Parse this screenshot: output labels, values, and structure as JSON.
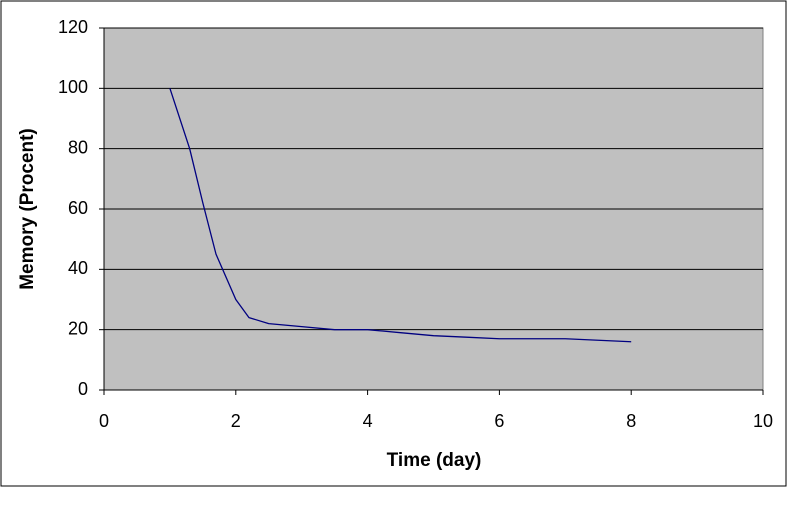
{
  "chart_data": {
    "type": "line",
    "x_label": "Time (day)",
    "y_label": "Memory (Procent)",
    "series": [
      {
        "color": "#000080",
        "x": [
          1,
          1.3,
          1.5,
          1.7,
          2,
          2.2,
          2.5,
          3,
          3.5,
          4,
          4.5,
          5,
          5.5,
          6,
          6.5,
          7,
          7.5,
          8
        ],
        "values": [
          100,
          80,
          62,
          45,
          30,
          24,
          22,
          21,
          20,
          20,
          19,
          18,
          17.5,
          17,
          17,
          17,
          16.5,
          16
        ]
      }
    ],
    "xlim": [
      0,
      10
    ],
    "xticks": [
      0,
      2,
      4,
      6,
      8,
      10
    ],
    "ylim": [
      0,
      120
    ],
    "yticks": [
      0,
      20,
      40,
      60,
      80,
      100,
      120
    ],
    "grid": true,
    "plot_background": "#c0c0c0"
  }
}
